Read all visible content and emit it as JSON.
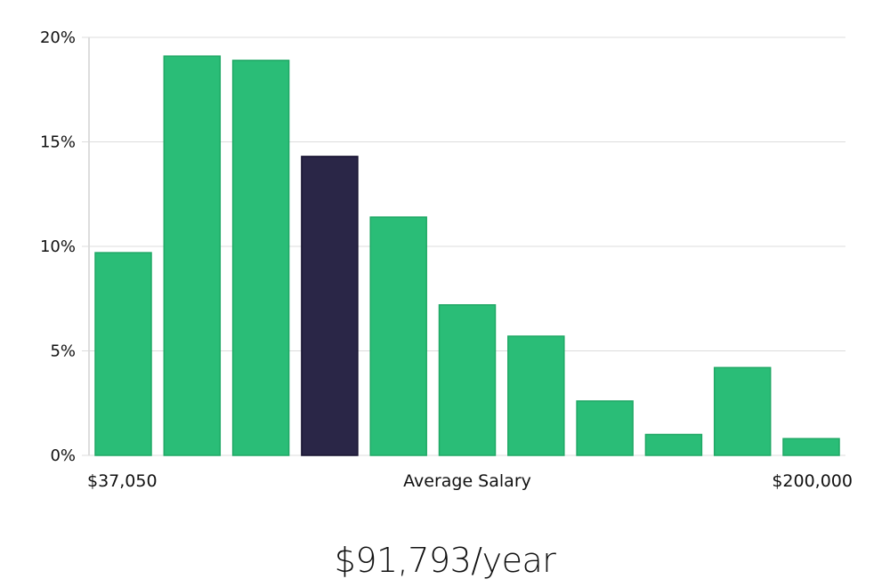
{
  "chart_data": {
    "type": "bar",
    "title": "",
    "xlabel": "Average Salary",
    "ylabel": "",
    "x_range_labels": {
      "min": "$37,050",
      "max": "$200,000"
    },
    "y_ticks": [
      {
        "value": 0,
        "label": "0%"
      },
      {
        "value": 5,
        "label": "5%"
      },
      {
        "value": 10,
        "label": "10%"
      },
      {
        "value": 15,
        "label": "15%"
      },
      {
        "value": 20,
        "label": "20%"
      }
    ],
    "ylim": [
      0,
      20
    ],
    "grid": true,
    "values": [
      9.7,
      19.1,
      18.9,
      14.3,
      11.4,
      7.2,
      5.7,
      2.6,
      1.0,
      4.2,
      0.8
    ],
    "highlight_index": 3,
    "colors": {
      "bar": "#2abd77",
      "bar_edge": "#1fa865",
      "highlight": "#2a2647",
      "highlight_edge": "#171330",
      "grid": "#dcdcdc",
      "axis": "#bbbbbb"
    }
  },
  "summary": {
    "average_salary": "$91,793/year"
  }
}
